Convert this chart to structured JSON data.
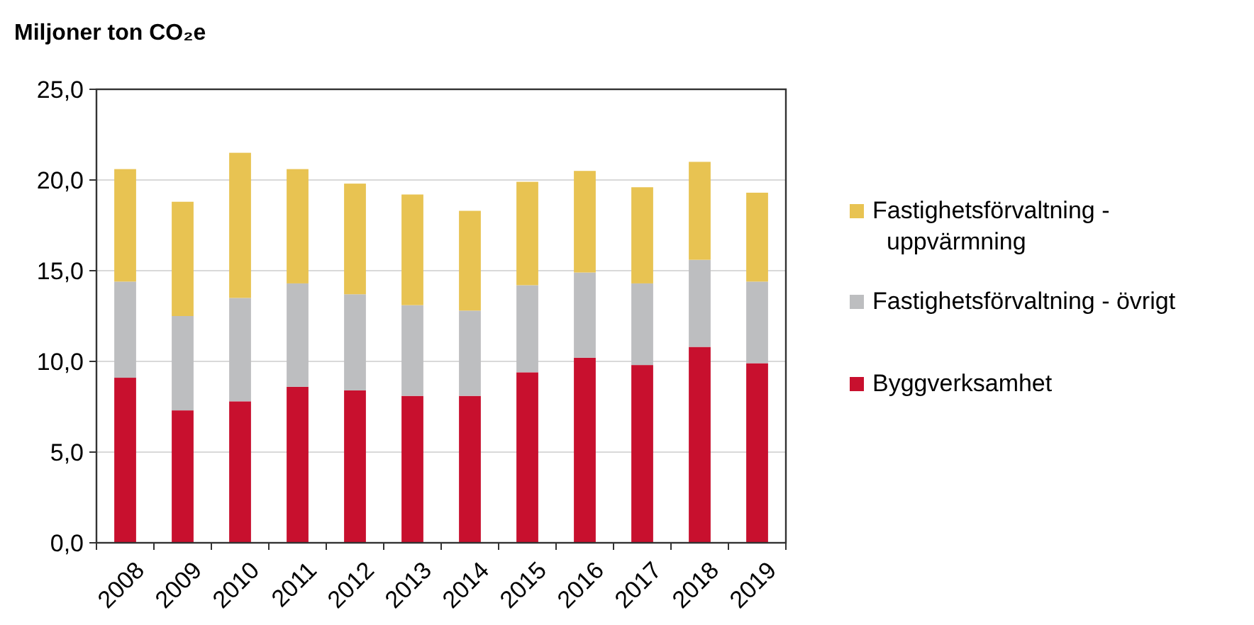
{
  "chart_data": {
    "type": "bar",
    "title": "Miljoner ton CO₂e",
    "stacked": true,
    "categories": [
      "2008",
      "2009",
      "2010",
      "2011",
      "2012",
      "2013",
      "2014",
      "2015",
      "2016",
      "2017",
      "2018",
      "2019"
    ],
    "series": [
      {
        "name": "Byggverksamhet",
        "color": "#c8102e",
        "values": [
          9.1,
          7.3,
          7.8,
          8.6,
          8.4,
          8.1,
          8.1,
          9.4,
          10.2,
          9.8,
          10.8,
          9.9
        ]
      },
      {
        "name": "Fastighetsförvaltning - övrigt",
        "color": "#bdbec0",
        "values": [
          5.3,
          5.2,
          5.7,
          5.7,
          5.3,
          5.0,
          4.7,
          4.8,
          4.7,
          4.5,
          4.8,
          4.5
        ]
      },
      {
        "name": "Fastighetsförvaltning - uppvärmning",
        "color": "#e8c352",
        "values": [
          6.2,
          6.3,
          8.0,
          6.3,
          6.1,
          6.1,
          5.5,
          5.7,
          5.6,
          5.3,
          5.4,
          4.9
        ]
      }
    ],
    "ylim": [
      0,
      25
    ],
    "yticks": [
      {
        "value": 0,
        "label": "0,0"
      },
      {
        "value": 5,
        "label": "5,0"
      },
      {
        "value": 10,
        "label": "10,0"
      },
      {
        "value": 15,
        "label": "15,0"
      },
      {
        "value": 20,
        "label": "20,0"
      },
      {
        "value": 25,
        "label": "25,0"
      }
    ],
    "grid": "y",
    "legend": "right"
  }
}
